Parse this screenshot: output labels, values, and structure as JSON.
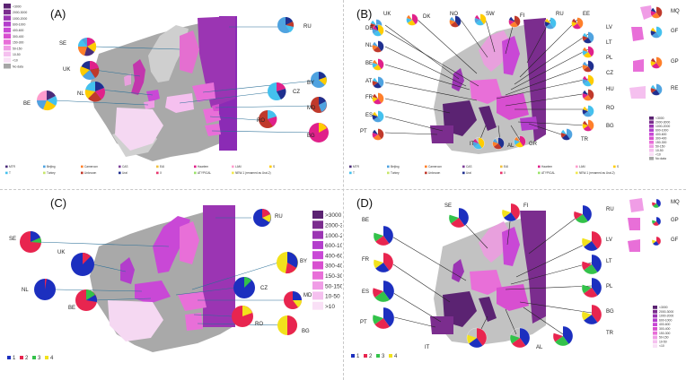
{
  "panels": {
    "A": {
      "letter": "(A)"
    },
    "B": {
      "letter": "(B)"
    },
    "C": {
      "letter": "(C)"
    },
    "D": {
      "letter": "(D)"
    }
  },
  "scale_a": [
    "<3000",
    "2000-3000",
    "1000-2000",
    "600-1000",
    "400-600",
    "300-400",
    "150-300",
    "50-150",
    "10-50",
    "<10",
    "No data"
  ],
  "scale_b": [
    "<3000",
    "2000-3000",
    "1000-2000",
    "600-1000",
    "400-600",
    "300-400",
    "150-300",
    "50-150",
    "10-50",
    "<10",
    "No data"
  ],
  "scale_c": [
    ">3000",
    "2000-3000",
    "1000-2000",
    "600-1000",
    "400-600",
    "300-400",
    "150-300",
    "50-150",
    "10-50",
    ">10"
  ],
  "scale_d": [
    "<3000",
    "2000-3000",
    "1000-2000",
    "600-1000",
    "400-600",
    "300-400",
    "150-300",
    "50-150",
    "10-50",
    "<10"
  ],
  "scale_colors": [
    "#5b2372",
    "#7b2d8e",
    "#9b35b3",
    "#b33ecc",
    "#c948d6",
    "#d84fd0",
    "#e86fd8",
    "#f09de6",
    "#f5c0ef",
    "#f9e0f6",
    "#a6a6a6"
  ],
  "legend_ab": [
    {
      "label": "MTR",
      "color": "#4a2c7a"
    },
    {
      "label": "Beijing",
      "color": "#4fa3e0"
    },
    {
      "label": "Cameroon",
      "color": "#ff7f2a"
    },
    {
      "label": "CAS",
      "color": "#7d3f98"
    },
    {
      "label": "EAI",
      "color": "#f0c040"
    },
    {
      "label": "Haarlem",
      "color": "#e0218a"
    },
    {
      "label": "LAM",
      "color": "#ff9ccd"
    },
    {
      "label": "S",
      "color": "#ffcc00"
    },
    {
      "label": "T",
      "color": "#44c1ee"
    },
    {
      "label": "Turkey",
      "color": "#c7e66a"
    },
    {
      "label": "Unknown",
      "color": "#c0392b"
    },
    {
      "label": "Ural",
      "color": "#1f2f8f"
    },
    {
      "label": "X",
      "color": "#e8356d"
    },
    {
      "label": "ATYPICAL",
      "color": "#9be36a"
    },
    {
      "label": "NEW-1 (renamed as Ural-2)",
      "color": "#f2e94e"
    }
  ],
  "legend_cd": [
    {
      "label": "1",
      "color": "#1c2fbf"
    },
    {
      "label": "2",
      "color": "#e8254f"
    },
    {
      "label": "3",
      "color": "#33c24a"
    },
    {
      "label": "4",
      "color": "#f2e21c"
    }
  ],
  "labels_a": [
    "RU",
    "SE",
    "UK",
    "NL",
    "BE",
    "BY",
    "CZ",
    "MD",
    "RO",
    "BG"
  ],
  "labels_b": [
    "UK",
    "DK",
    "NO",
    "SW",
    "FI",
    "RU",
    "EE",
    "LV",
    "LT",
    "PL",
    "CZ",
    "HU",
    "RO",
    "BG",
    "TR",
    "GR",
    "AL",
    "IT",
    "PT",
    "ES",
    "FR",
    "AT",
    "BE",
    "NL",
    "DE",
    "MQ",
    "GF",
    "GP",
    "RE"
  ],
  "labels_c": [
    "RU",
    "SE",
    "UK",
    "NL",
    "BE",
    "BY",
    "CZ",
    "MD",
    "RO",
    "BG"
  ],
  "labels_d": [
    "SE",
    "FI",
    "RU",
    "BE",
    "FR",
    "ES",
    "PT",
    "LV",
    "LT",
    "PL",
    "BG",
    "TR",
    "AL",
    "IT",
    "MQ",
    "GP",
    "GF"
  ]
}
